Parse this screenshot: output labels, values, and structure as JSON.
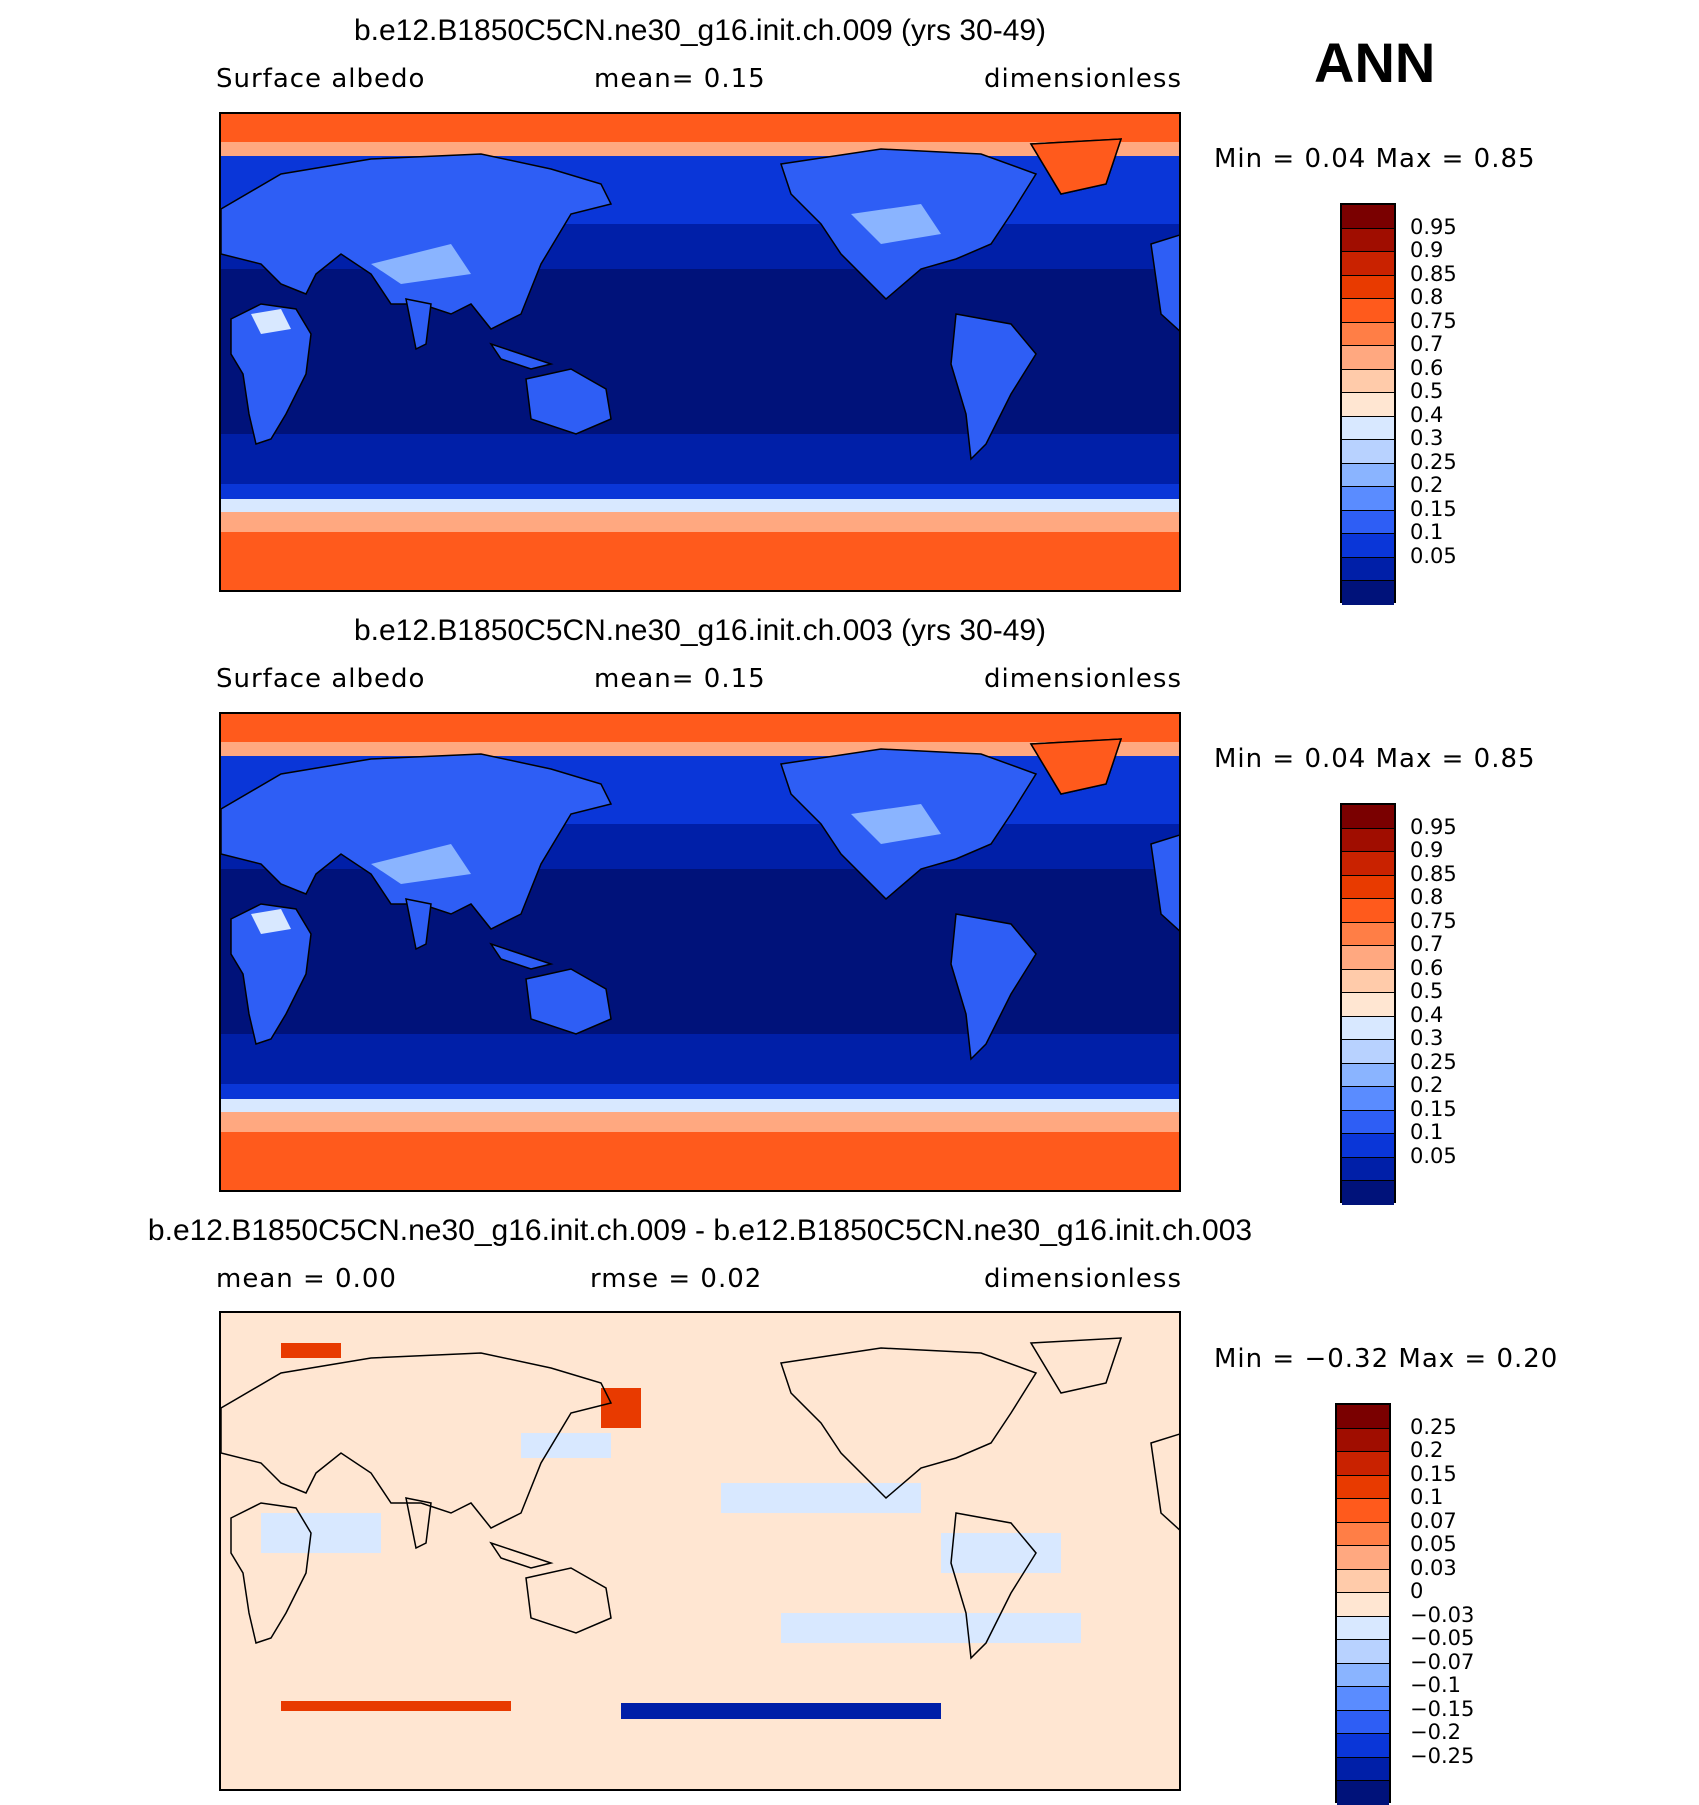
{
  "season": "ANN",
  "panels": [
    {
      "title": "b.e12.B1850C5CN.ne30_g16.init.ch.009 (yrs 30-49)",
      "left_label": "Surface  albedo",
      "center_label": "mean=     0.15",
      "right_label": "dimensionless",
      "stats": "Min  =      0.04  Max  =      0.85",
      "colorbar": {
        "labels": [
          "0.95",
          "0.9",
          "0.85",
          "0.8",
          "0.75",
          "0.7",
          "0.6",
          "0.5",
          "0.4",
          "0.3",
          "0.25",
          "0.2",
          "0.15",
          "0.1",
          "0.05"
        ],
        "colors": [
          "#7a0000",
          "#a00d00",
          "#c92200",
          "#e83a00",
          "#ff5a1c",
          "#ff7e46",
          "#ffa880",
          "#ffcbaa",
          "#ffe6d2",
          "#d8e8ff",
          "#b8d2ff",
          "#8ab4ff",
          "#5a8cff",
          "#2e5ef5",
          "#0a36d8",
          "#001fa8",
          "#00127a"
        ]
      },
      "map_type": "albedo"
    },
    {
      "title": "b.e12.B1850C5CN.ne30_g16.init.ch.003 (yrs 30-49)",
      "left_label": "Surface  albedo",
      "center_label": "mean=     0.15",
      "right_label": "dimensionless",
      "stats": "Min  =      0.04  Max  =      0.85",
      "colorbar": {
        "labels": [
          "0.95",
          "0.9",
          "0.85",
          "0.8",
          "0.75",
          "0.7",
          "0.6",
          "0.5",
          "0.4",
          "0.3",
          "0.25",
          "0.2",
          "0.15",
          "0.1",
          "0.05"
        ],
        "colors": [
          "#7a0000",
          "#a00d00",
          "#c92200",
          "#e83a00",
          "#ff5a1c",
          "#ff7e46",
          "#ffa880",
          "#ffcbaa",
          "#ffe6d2",
          "#d8e8ff",
          "#b8d2ff",
          "#8ab4ff",
          "#5a8cff",
          "#2e5ef5",
          "#0a36d8",
          "#001fa8",
          "#00127a"
        ]
      },
      "map_type": "albedo"
    },
    {
      "title": "b.e12.B1850C5CN.ne30_g16.init.ch.009 - b.e12.B1850C5CN.ne30_g16.init.ch.003",
      "left_label": "mean  =      0.00",
      "center_label": "rmse  =      0.02",
      "right_label": "dimensionless",
      "stats": "Min  =    −0.32  Max  =      0.20",
      "colorbar": {
        "labels": [
          "0.25",
          "0.2",
          "0.15",
          "0.1",
          "0.07",
          "0.05",
          "0.03",
          "0",
          "−0.03",
          "−0.05",
          "−0.07",
          "−0.1",
          "−0.15",
          "−0.2",
          "−0.25"
        ],
        "colors": [
          "#7a0000",
          "#a00d00",
          "#c92200",
          "#e83a00",
          "#ff5a1c",
          "#ff7e46",
          "#ffa880",
          "#ffcbaa",
          "#ffe6d2",
          "#d8e8ff",
          "#b8d2ff",
          "#8ab4ff",
          "#5a8cff",
          "#2e5ef5",
          "#0a36d8",
          "#001fa8",
          "#00127a"
        ]
      },
      "map_type": "difference"
    }
  ],
  "colors": {
    "ocean_deep": "#00127a",
    "ocean_mid": "#001fa8",
    "ocean_band": "#0a36d8",
    "land_low": "#2e5ef5",
    "land_mid": "#8ab4ff",
    "land_high": "#d8e8ff",
    "ice": "#ff5a1c",
    "ice_edge": "#ffa880",
    "diff_pos": "#ffe6d2",
    "diff_neg": "#d8e8ff",
    "diff_strong_pos": "#e83a00",
    "diff_strong_neg": "#001fa8"
  }
}
